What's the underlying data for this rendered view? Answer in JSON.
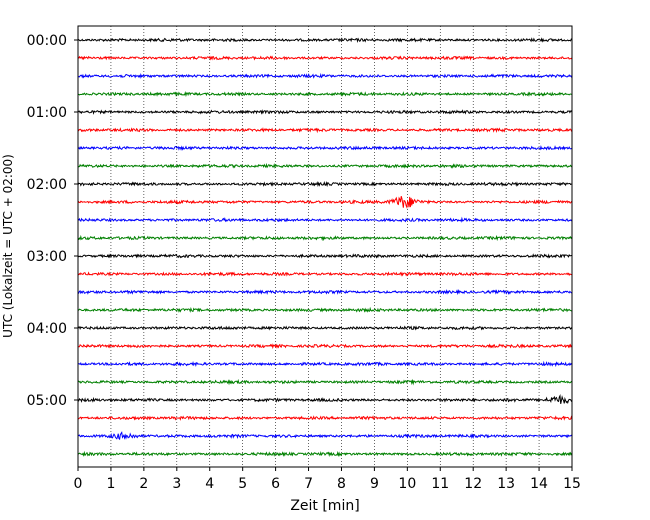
{
  "chart_data": {
    "type": "line",
    "title": "",
    "xlabel": "Zeit  [min]",
    "ylabel": "UTC (Lokalzeit = UTC + 02:00)",
    "xlim": [
      0,
      15
    ],
    "x_ticks": [
      "0",
      "1",
      "2",
      "3",
      "4",
      "5",
      "6",
      "7",
      "8",
      "9",
      "10",
      "11",
      "12",
      "13",
      "14",
      "15"
    ],
    "y_tick_labels": [
      "00:00",
      "01:00",
      "02:00",
      "03:00",
      "04:00",
      "05:00"
    ],
    "grid": "vertical dotted",
    "trace_interval_min": 15,
    "colors": [
      "#000000",
      "#ff0000",
      "#0000ff",
      "#008000"
    ],
    "traces": [
      {
        "start": "00:00",
        "color": "#000000",
        "events": []
      },
      {
        "start": "00:15",
        "color": "#ff0000",
        "events": []
      },
      {
        "start": "00:30",
        "color": "#0000ff",
        "events": []
      },
      {
        "start": "00:45",
        "color": "#008000",
        "events": []
      },
      {
        "start": "01:00",
        "color": "#000000",
        "events": []
      },
      {
        "start": "01:15",
        "color": "#ff0000",
        "events": []
      },
      {
        "start": "01:30",
        "color": "#0000ff",
        "events": []
      },
      {
        "start": "01:45",
        "color": "#008000",
        "events": []
      },
      {
        "start": "02:00",
        "color": "#000000",
        "events": []
      },
      {
        "start": "02:15",
        "color": "#ff0000",
        "events": [
          {
            "t": 9.9,
            "amp": 1.0
          }
        ]
      },
      {
        "start": "02:30",
        "color": "#0000ff",
        "events": []
      },
      {
        "start": "02:45",
        "color": "#008000",
        "events": []
      },
      {
        "start": "03:00",
        "color": "#000000",
        "events": []
      },
      {
        "start": "03:15",
        "color": "#ff0000",
        "events": []
      },
      {
        "start": "03:30",
        "color": "#0000ff",
        "events": []
      },
      {
        "start": "03:45",
        "color": "#008000",
        "events": []
      },
      {
        "start": "04:00",
        "color": "#000000",
        "events": []
      },
      {
        "start": "04:15",
        "color": "#ff0000",
        "events": []
      },
      {
        "start": "04:30",
        "color": "#0000ff",
        "events": []
      },
      {
        "start": "04:45",
        "color": "#008000",
        "events": []
      },
      {
        "start": "05:00",
        "color": "#000000",
        "events": [
          {
            "t": 14.6,
            "amp": 0.6
          }
        ]
      },
      {
        "start": "05:15",
        "color": "#ff0000",
        "events": []
      },
      {
        "start": "05:30",
        "color": "#0000ff",
        "events": [
          {
            "t": 1.4,
            "amp": 0.5
          }
        ]
      },
      {
        "start": "05:45",
        "color": "#008000",
        "events": []
      }
    ]
  }
}
